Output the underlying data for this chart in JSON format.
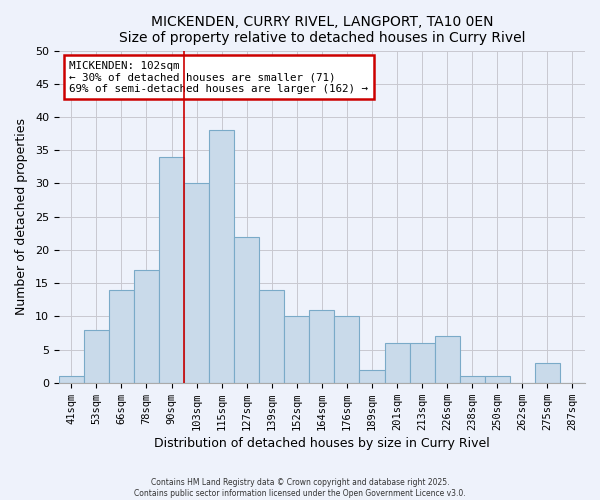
{
  "title": "MICKENDEN, CURRY RIVEL, LANGPORT, TA10 0EN",
  "subtitle": "Size of property relative to detached houses in Curry Rivel",
  "xlabel": "Distribution of detached houses by size in Curry Rivel",
  "ylabel": "Number of detached properties",
  "bins": [
    "41sqm",
    "53sqm",
    "66sqm",
    "78sqm",
    "90sqm",
    "103sqm",
    "115sqm",
    "127sqm",
    "139sqm",
    "152sqm",
    "164sqm",
    "176sqm",
    "189sqm",
    "201sqm",
    "213sqm",
    "226sqm",
    "238sqm",
    "250sqm",
    "262sqm",
    "275sqm",
    "287sqm"
  ],
  "values": [
    1,
    8,
    14,
    17,
    34,
    30,
    38,
    22,
    14,
    10,
    11,
    10,
    2,
    6,
    6,
    7,
    1,
    1,
    0,
    3,
    0
  ],
  "bar_color": "#c9daea",
  "bar_edge_color": "#7aaac8",
  "background_color": "#eef2fb",
  "grid_color": "#c8c8d0",
  "vline_x_index": 5,
  "vline_color": "#cc0000",
  "annotation_text": "MICKENDEN: 102sqm\n← 30% of detached houses are smaller (71)\n69% of semi-detached houses are larger (162) →",
  "annotation_box_color": "#ffffff",
  "annotation_box_edge_color": "#cc0000",
  "ylim": [
    0,
    50
  ],
  "yticks": [
    0,
    5,
    10,
    15,
    20,
    25,
    30,
    35,
    40,
    45,
    50
  ],
  "footer1": "Contains HM Land Registry data © Crown copyright and database right 2025.",
  "footer2": "Contains public sector information licensed under the Open Government Licence v3.0."
}
